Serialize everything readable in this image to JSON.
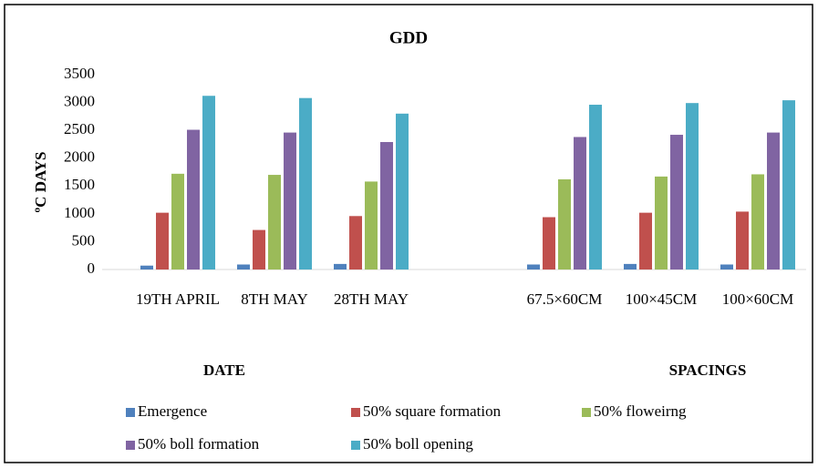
{
  "chart_data": {
    "type": "bar",
    "title": "GDD",
    "y_label": "ºC DAYS",
    "group_labels": [
      "DATE",
      "SPACINGS"
    ],
    "categories": [
      "19TH APRIL",
      "8TH MAY",
      "28TH MAY",
      null,
      "67.5×60CM",
      "100×45CM",
      "100×60CM"
    ],
    "series": [
      {
        "name": "Emergence",
        "color": "#4f81bd",
        "values": [
          70,
          90,
          100,
          null,
          90,
          100,
          90
        ]
      },
      {
        "name": "50% square formation",
        "color": "#c0504d",
        "values": [
          1020,
          710,
          960,
          null,
          940,
          1020,
          1040
        ]
      },
      {
        "name": "50% floweirng",
        "color": "#9bbb59",
        "values": [
          1720,
          1700,
          1580,
          null,
          1620,
          1670,
          1710
        ]
      },
      {
        "name": "50% boll formation",
        "color": "#8064a2",
        "values": [
          2510,
          2460,
          2290,
          null,
          2380,
          2420,
          2460
        ]
      },
      {
        "name": "50% boll opening",
        "color": "#4bacc6",
        "values": [
          3120,
          3080,
          2800,
          null,
          2960,
          2990,
          3040
        ]
      }
    ],
    "ylim": [
      0,
      3500
    ],
    "yticks": [
      0,
      500,
      1000,
      1500,
      2000,
      2500,
      3000,
      3500
    ],
    "grid": false,
    "legend": "bottom"
  }
}
